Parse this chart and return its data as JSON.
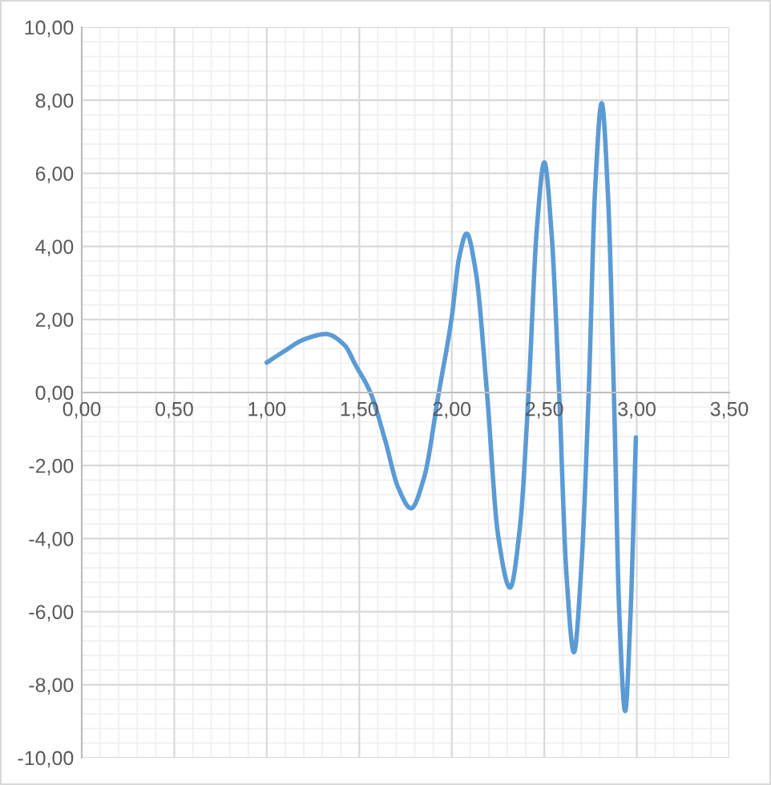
{
  "chart_data": {
    "type": "line",
    "x": [
      1.0,
      1.1,
      1.2,
      1.32,
      1.42,
      1.48,
      1.56,
      1.64,
      1.71,
      1.78,
      1.85,
      1.93,
      2.0,
      2.04,
      2.08,
      2.13,
      2.19,
      2.25,
      2.315,
      2.37,
      2.415,
      2.46,
      2.5,
      2.54,
      2.58,
      2.62,
      2.66,
      2.7,
      2.74,
      2.775,
      2.81,
      2.845,
      2.876,
      2.905,
      2.937,
      2.965,
      2.995
    ],
    "series": [
      {
        "color": "#5b9bd5",
        "values": [
          0.82,
          1.15,
          1.45,
          1.6,
          1.3,
          0.75,
          0,
          -1.31,
          -2.6,
          -3.17,
          -2.33,
          0,
          2.07,
          3.7,
          4.35,
          3.3,
          0,
          -3.9,
          -5.34,
          -3.6,
          0,
          4.5,
          6.3,
          4.3,
          0,
          -5.0,
          -7.11,
          -4.8,
          0,
          5.6,
          7.92,
          5.3,
          0,
          -6.0,
          -8.72,
          -6.2,
          -1.23
        ]
      }
    ],
    "xlim": [
      0,
      3.5
    ],
    "ylim": [
      -10,
      10
    ],
    "xticks": [
      {
        "value": 0,
        "label": "0,00"
      },
      {
        "value": 0.5,
        "label": "0,50"
      },
      {
        "value": 1,
        "label": "1,00"
      },
      {
        "value": 1.5,
        "label": "1,50"
      },
      {
        "value": 2,
        "label": "2,00"
      },
      {
        "value": 2.5,
        "label": "2,50"
      },
      {
        "value": 3,
        "label": "3,00"
      },
      {
        "value": 3.5,
        "label": "3,50"
      }
    ],
    "yticks": [
      {
        "value": -10,
        "label": "-10,00"
      },
      {
        "value": -8,
        "label": "-8,00"
      },
      {
        "value": -6,
        "label": "-6,00"
      },
      {
        "value": -4,
        "label": "-4,00"
      },
      {
        "value": -2,
        "label": "-2,00"
      },
      {
        "value": 0,
        "label": "0,00"
      },
      {
        "value": 2,
        "label": "2,00"
      },
      {
        "value": 4,
        "label": "4,00"
      },
      {
        "value": 6,
        "label": "6,00"
      },
      {
        "value": 8,
        "label": "8,00"
      },
      {
        "value": 10,
        "label": "10,00"
      }
    ],
    "grid": true,
    "marker": "none",
    "line_style": "solid"
  }
}
